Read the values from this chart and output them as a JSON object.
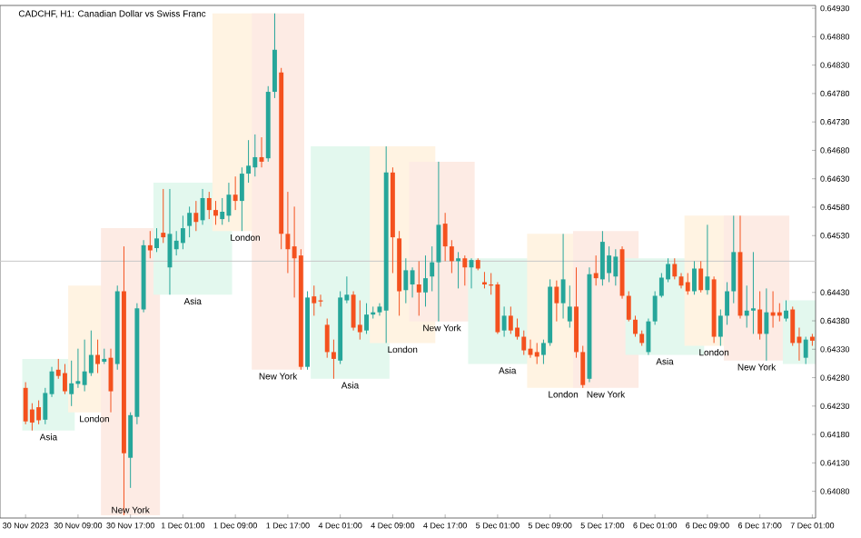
{
  "chart_data": {
    "type": "candlestick",
    "title": "CADCHF, H1:  Canadian Dollar vs Swiss Franc",
    "categories": [
      "30 Nov 2023",
      null,
      null,
      null,
      null,
      null,
      null,
      null,
      "30 Nov 09:00",
      null,
      null,
      null,
      null,
      null,
      null,
      null,
      "30 Nov 17:00",
      null,
      null,
      null,
      null,
      null,
      null,
      null,
      "1 Dec 01:00",
      null,
      null,
      null,
      null,
      null,
      null,
      null,
      "1 Dec 09:00",
      null,
      null,
      null,
      null,
      null,
      null,
      null,
      "1 Dec 17:00",
      null,
      null,
      null,
      null,
      null,
      null,
      null,
      "4 Dec 01:00",
      null,
      null,
      null,
      null,
      null,
      null,
      null,
      "4 Dec 09:00",
      null,
      null,
      null,
      null,
      null,
      null,
      null,
      "4 Dec 17:00",
      null,
      null,
      null,
      null,
      null,
      null,
      null,
      "5 Dec 01:00",
      null,
      null,
      null,
      null,
      null,
      null,
      null,
      "5 Dec 09:00",
      null,
      null,
      null,
      null,
      null,
      null,
      null,
      "5 Dec 17:00",
      null,
      null,
      null,
      null,
      null,
      null,
      null,
      "6 Dec 01:00",
      null,
      null,
      null,
      null,
      null,
      null,
      null,
      "6 Dec 09:00",
      null,
      null,
      null,
      null,
      null,
      null,
      null,
      "6 Dec 17:00",
      null,
      null,
      null,
      null,
      null,
      null,
      null,
      "7 Dec 01:00"
    ],
    "ohlc": [
      [
        0.64262,
        0.64272,
        0.64198,
        0.64203
      ],
      [
        0.64224,
        0.64235,
        0.64187,
        0.64201
      ],
      [
        0.64228,
        0.6424,
        0.64198,
        0.64205
      ],
      [
        0.64206,
        0.64262,
        0.64198,
        0.64253
      ],
      [
        0.64251,
        0.64299,
        0.64246,
        0.64291
      ],
      [
        0.64294,
        0.64313,
        0.64278,
        0.64283
      ],
      [
        0.64288,
        0.64304,
        0.64251,
        0.64256
      ],
      [
        0.64251,
        0.6431,
        0.6423,
        0.6427
      ],
      [
        0.64269,
        0.64331,
        0.64262,
        0.64274
      ],
      [
        0.64267,
        0.64347,
        0.64256,
        0.64291
      ],
      [
        0.64288,
        0.64363,
        0.64283,
        0.6432
      ],
      [
        0.6432,
        0.64347,
        0.64288,
        0.64304
      ],
      [
        0.64308,
        0.64331,
        0.64304,
        0.64313
      ],
      [
        0.64315,
        0.64331,
        0.64219,
        0.64256
      ],
      [
        0.64304,
        0.64442,
        0.64294,
        0.64432
      ],
      [
        0.64432,
        0.64511,
        0.64038,
        0.64147
      ],
      [
        0.64139,
        0.64219,
        0.64086,
        0.64214
      ],
      [
        0.64211,
        0.64411,
        0.64198,
        0.64402
      ],
      [
        0.644,
        0.64522,
        0.64395,
        0.64513
      ],
      [
        0.64513,
        0.64538,
        0.6449,
        0.64504
      ],
      [
        0.64508,
        0.64543,
        0.64501,
        0.64525
      ],
      [
        0.64535,
        0.64612,
        0.64517,
        0.64527
      ],
      [
        0.64474,
        0.64612,
        0.64426,
        0.64533
      ],
      [
        0.64506,
        0.64538,
        0.64495,
        0.64521
      ],
      [
        0.64517,
        0.64565,
        0.64506,
        0.64543
      ],
      [
        0.64547,
        0.64581,
        0.64527,
        0.6457
      ],
      [
        0.6457,
        0.64591,
        0.64538,
        0.64554
      ],
      [
        0.64557,
        0.64612,
        0.64549,
        0.64596
      ],
      [
        0.64596,
        0.64607,
        0.64559,
        0.64575
      ],
      [
        0.64575,
        0.64591,
        0.64549,
        0.64565
      ],
      [
        0.64559,
        0.64596,
        0.64549,
        0.64572
      ],
      [
        0.64565,
        0.64623,
        0.64554,
        0.64602
      ],
      [
        0.64602,
        0.64634,
        0.64575,
        0.64591
      ],
      [
        0.64591,
        0.6465,
        0.64538,
        0.64639
      ],
      [
        0.64639,
        0.64698,
        0.64623,
        0.64653
      ],
      [
        0.6465,
        0.64708,
        0.64634,
        0.64668
      ],
      [
        0.64668,
        0.64703,
        0.6465,
        0.6466
      ],
      [
        0.64666,
        0.64793,
        0.6466,
        0.64783
      ],
      [
        0.64783,
        0.64921,
        0.64772,
        0.64857
      ],
      [
        0.64817,
        0.64825,
        0.64506,
        0.64533
      ],
      [
        0.64533,
        0.64607,
        0.64464,
        0.64506
      ],
      [
        0.64511,
        0.64581,
        0.64421,
        0.6449
      ],
      [
        0.64495,
        0.64506,
        0.64294,
        0.64299
      ],
      [
        0.64299,
        0.64432,
        0.64294,
        0.64421
      ],
      [
        0.64423,
        0.64442,
        0.64389,
        0.64411
      ],
      [
        0.64416,
        0.64426,
        0.64405,
        0.64414
      ],
      [
        0.64373,
        0.64384,
        0.64315,
        0.64325
      ],
      [
        0.64325,
        0.64347,
        0.64278,
        0.64313
      ],
      [
        0.6431,
        0.64432,
        0.64304,
        0.64421
      ],
      [
        0.64416,
        0.64458,
        0.64411,
        0.64426
      ],
      [
        0.64426,
        0.64432,
        0.64363,
        0.64368
      ],
      [
        0.64373,
        0.64416,
        0.64347,
        0.6436
      ],
      [
        0.64363,
        0.64411,
        0.64357,
        0.64391
      ],
      [
        0.64391,
        0.64405,
        0.64384,
        0.64395
      ],
      [
        0.64395,
        0.64411,
        0.64389,
        0.64405
      ],
      [
        0.64398,
        0.64687,
        0.64341,
        0.64641
      ],
      [
        0.64641,
        0.6465,
        0.64464,
        0.64527
      ],
      [
        0.64525,
        0.64538,
        0.64389,
        0.64432
      ],
      [
        0.64434,
        0.6449,
        0.64411,
        0.64469
      ],
      [
        0.64444,
        0.64474,
        0.64421,
        0.64469
      ],
      [
        0.64444,
        0.64485,
        0.64389,
        0.6443
      ],
      [
        0.6443,
        0.64495,
        0.64405,
        0.64455
      ],
      [
        0.64458,
        0.64511,
        0.64432,
        0.64483
      ],
      [
        0.64483,
        0.6466,
        0.64379,
        0.64549
      ],
      [
        0.64551,
        0.6457,
        0.64485,
        0.64511
      ],
      [
        0.64511,
        0.64522,
        0.64464,
        0.64485
      ],
      [
        0.64485,
        0.64501,
        0.64437,
        0.6449
      ],
      [
        0.6449,
        0.64495,
        0.64442,
        0.64474
      ],
      [
        0.64474,
        0.6449,
        0.64437,
        0.64487
      ],
      [
        0.64487,
        0.6449,
        0.64469,
        0.64472
      ],
      [
        0.64448,
        0.64466,
        0.64437,
        0.64444
      ],
      [
        0.64444,
        0.64464,
        0.64426,
        0.64442
      ],
      [
        0.64444,
        0.64448,
        0.64357,
        0.6436
      ],
      [
        0.64363,
        0.64405,
        0.64352,
        0.64389
      ],
      [
        0.64389,
        0.64405,
        0.64357,
        0.64363
      ],
      [
        0.64368,
        0.64384,
        0.64347,
        0.64352
      ],
      [
        0.64352,
        0.64363,
        0.6432,
        0.64328
      ],
      [
        0.64331,
        0.64347,
        0.64315,
        0.6432
      ],
      [
        0.64325,
        0.64341,
        0.64304,
        0.64317
      ],
      [
        0.6432,
        0.64347,
        0.64304,
        0.64341
      ],
      [
        0.64341,
        0.64453,
        0.64336,
        0.6444
      ],
      [
        0.6444,
        0.64451,
        0.64379,
        0.64411
      ],
      [
        0.64411,
        0.64533,
        0.64384,
        0.64453
      ],
      [
        0.64379,
        0.64442,
        0.64368,
        0.64405
      ],
      [
        0.64405,
        0.64474,
        0.64315,
        0.64325
      ],
      [
        0.64325,
        0.64336,
        0.64262,
        0.64267
      ],
      [
        0.64278,
        0.64474,
        0.64272,
        0.64462
      ],
      [
        0.64464,
        0.64495,
        0.64442,
        0.64455
      ],
      [
        0.64453,
        0.64538,
        0.64442,
        0.64519
      ],
      [
        0.64464,
        0.64511,
        0.64448,
        0.64495
      ],
      [
        0.64458,
        0.64506,
        0.64442,
        0.64493
      ],
      [
        0.64506,
        0.64511,
        0.64419,
        0.64424
      ],
      [
        0.64424,
        0.64432,
        0.64379,
        0.64382
      ],
      [
        0.64382,
        0.64389,
        0.64352,
        0.64357
      ],
      [
        0.64357,
        0.64363,
        0.64336,
        0.64341
      ],
      [
        0.64325,
        0.64384,
        0.6432,
        0.64379
      ],
      [
        0.64379,
        0.64432,
        0.64373,
        0.64424
      ],
      [
        0.64424,
        0.64464,
        0.64421,
        0.64456
      ],
      [
        0.64453,
        0.6449,
        0.64448,
        0.6448
      ],
      [
        0.6448,
        0.6449,
        0.64453,
        0.64458
      ],
      [
        0.64458,
        0.64464,
        0.64437,
        0.64442
      ],
      [
        0.64448,
        0.64464,
        0.64426,
        0.64432
      ],
      [
        0.64432,
        0.64485,
        0.64426,
        0.64472
      ],
      [
        0.64472,
        0.64485,
        0.6443,
        0.64434
      ],
      [
        0.64434,
        0.64549,
        0.64426,
        0.64458
      ],
      [
        0.64453,
        0.64458,
        0.64341,
        0.64352
      ],
      [
        0.64352,
        0.644,
        0.64336,
        0.64389
      ],
      [
        0.64389,
        0.64448,
        0.64373,
        0.64432
      ],
      [
        0.64432,
        0.64565,
        0.64411,
        0.64501
      ],
      [
        0.64501,
        0.64565,
        0.64384,
        0.64389
      ],
      [
        0.64389,
        0.64442,
        0.64368,
        0.64398
      ],
      [
        0.64398,
        0.64501,
        0.64357,
        0.64402
      ],
      [
        0.644,
        0.64432,
        0.64347,
        0.64357
      ],
      [
        0.64357,
        0.64437,
        0.6431,
        0.64395
      ],
      [
        0.64395,
        0.64432,
        0.64368,
        0.64389
      ],
      [
        0.64395,
        0.64411,
        0.64379,
        0.64389
      ],
      [
        0.64384,
        0.64416,
        0.64379,
        0.64398
      ],
      [
        0.644,
        0.64405,
        0.64336,
        0.64341
      ],
      [
        0.64352,
        0.64368,
        0.6431,
        0.64341
      ],
      [
        0.64315,
        0.64352,
        0.64304,
        0.64347
      ],
      [
        0.64352,
        0.64357,
        0.64336,
        0.64345
      ]
    ],
    "ylim": [
      0.64033,
      0.64935
    ],
    "yticks": [
      {
        "value": 0.6408,
        "label": "0.64080"
      },
      {
        "value": 0.6413,
        "label": "0.64130"
      },
      {
        "value": 0.6418,
        "label": "0.64180"
      },
      {
        "value": 0.6423,
        "label": "0.64230"
      },
      {
        "value": 0.6428,
        "label": "0.64280"
      },
      {
        "value": 0.6433,
        "label": "0.64330"
      },
      {
        "value": 0.6438,
        "label": "0.64380"
      },
      {
        "value": 0.6443,
        "label": "0.64430"
      },
      {
        "value": 0.6453,
        "label": "0.64530"
      },
      {
        "value": 0.6458,
        "label": "0.64580"
      },
      {
        "value": 0.6463,
        "label": "0.64630"
      },
      {
        "value": 0.6468,
        "label": "0.64680"
      },
      {
        "value": 0.6473,
        "label": "0.64730"
      },
      {
        "value": 0.6478,
        "label": "0.64780"
      },
      {
        "value": 0.6483,
        "label": "0.64830"
      },
      {
        "value": 0.6488,
        "label": "0.64880"
      },
      {
        "value": 0.6493,
        "label": "0.64930"
      }
    ],
    "ref_lines": [
      {
        "axis": "y",
        "value": 0.64485,
        "color": "#c8c8c8"
      }
    ],
    "annotations": [
      "Asia",
      "London",
      "New York",
      "Asia",
      "London",
      "New York",
      "Asia",
      "London",
      "New York",
      "Asia",
      "London",
      "New York",
      "Asia",
      "London",
      "New York"
    ]
  }
}
